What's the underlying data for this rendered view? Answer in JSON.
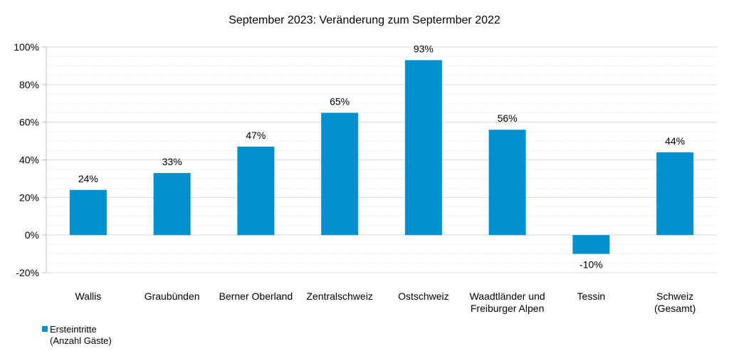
{
  "chart_data": {
    "type": "bar",
    "title": "September 2023: Veränderung zum Septermber 2022",
    "categories": [
      [
        "Wallis"
      ],
      [
        "Graubünden"
      ],
      [
        "Berner Oberland"
      ],
      [
        "Zentralschweiz"
      ],
      [
        "Ostschweiz"
      ],
      [
        "Waadtländer und",
        "Freiburger Alpen"
      ],
      [
        "Tessin"
      ],
      [
        "Schweiz",
        "(Gesamt)"
      ]
    ],
    "series": [
      {
        "name": [
          "Ersteintritte",
          "(Anzahl Gäste)"
        ],
        "values": [
          24,
          33,
          47,
          65,
          93,
          56,
          -10,
          44
        ],
        "data_labels": [
          "24%",
          "33%",
          "47%",
          "65%",
          "93%",
          "56%",
          "-10%",
          "44%"
        ],
        "color": "#0090cd"
      }
    ],
    "ylim": [
      -20,
      100
    ],
    "yticks": [
      -20,
      0,
      20,
      40,
      60,
      80,
      100
    ],
    "ytick_labels": [
      "-20%",
      "0%",
      "20%",
      "40%",
      "60%",
      "80%",
      "100%"
    ],
    "minor_grid_step": 5,
    "grid": true,
    "legend_position": "bottom-left",
    "colors": {
      "bar": "#0090cd",
      "grid": "#d9d9d9",
      "axis": "#bfbfbf",
      "text": "#000000"
    }
  }
}
